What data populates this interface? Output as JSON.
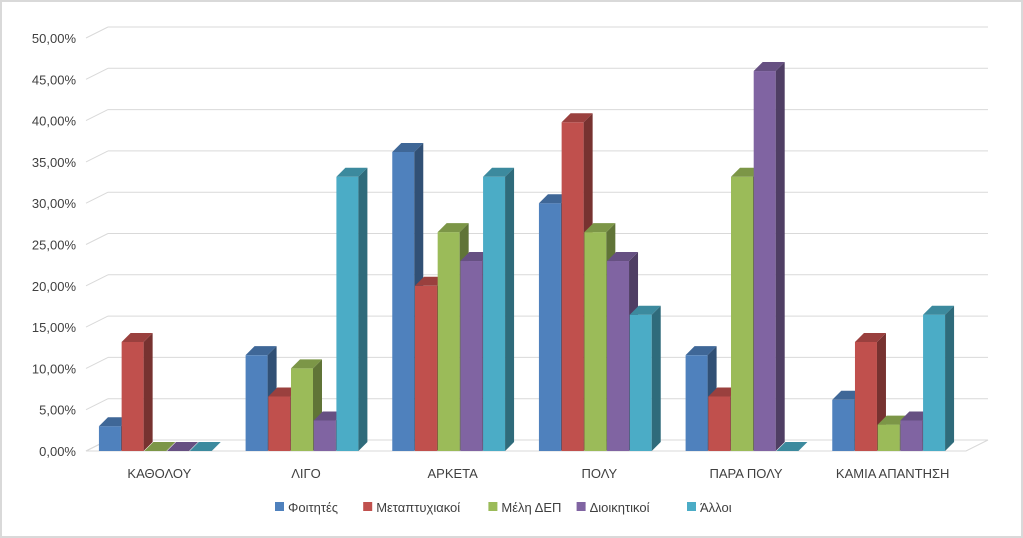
{
  "chart_data": {
    "type": "bar",
    "variant": "3d-clustered-column",
    "categories": [
      "ΚΑΘΟΛΟΥ",
      "ΛΙΓΟ",
      "ΑΡΚΕΤΑ",
      "ΠΟΛΥ",
      "ΠΑΡΑ ΠΟΛΥ",
      "ΚΑΜΙΑ ΑΠΑΝΤΗΣΗ"
    ],
    "series": [
      {
        "name": "Φοιτητές",
        "color": "#4f81bd",
        "values": [
          3.0,
          11.6,
          36.2,
          30.0,
          11.6,
          6.2
        ]
      },
      {
        "name": "Μεταπτυχιακοί",
        "color": "#c0504d",
        "values": [
          13.2,
          6.6,
          20.0,
          39.8,
          6.6,
          13.2
        ]
      },
      {
        "name": "Μέλη ΔΕΠ",
        "color": "#9bbb59",
        "values": [
          0,
          10.0,
          26.5,
          26.5,
          33.2,
          3.2
        ]
      },
      {
        "name": "Διοικητικοί",
        "color": "#8064a2",
        "values": [
          0,
          3.7,
          23.0,
          23.0,
          46.0,
          3.7
        ]
      },
      {
        "name": "Άλλοι",
        "color": "#4bacc6",
        "values": [
          0,
          33.2,
          33.2,
          16.5,
          0,
          16.5
        ]
      }
    ],
    "ylim": [
      0,
      50
    ],
    "yticks": [
      "0,00%",
      "5,00%",
      "10,00%",
      "15,00%",
      "20,00%",
      "25,00%",
      "30,00%",
      "35,00%",
      "40,00%",
      "45,00%",
      "50,00%"
    ],
    "grid": true,
    "legend_position": "bottom"
  }
}
